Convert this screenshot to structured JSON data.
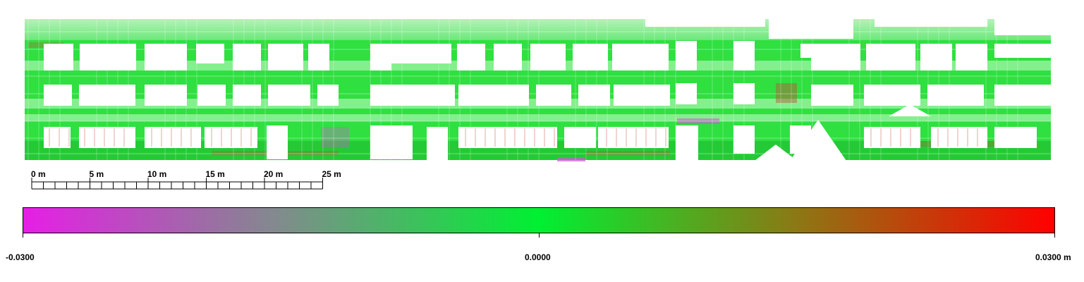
{
  "facade": {
    "colors": {
      "background": "#ffffff",
      "base_green": "#2fe040",
      "light_green": "#9af2a0",
      "dark_green": "#1fc030",
      "deviation_red": "#c0503a",
      "deviation_magenta": "#d05ad8"
    }
  },
  "scale_bar": {
    "unit": "m",
    "labels": [
      "0 m",
      "5 m",
      "10 m",
      "15 m",
      "20 m",
      "25 m"
    ],
    "major_values": [
      0,
      5,
      10,
      15,
      20,
      25
    ],
    "minor_step": 1
  },
  "colorbar": {
    "colors": {
      "min": "#e61ee6",
      "mid_low": "#808c8c",
      "center": "#00f032",
      "mid_high": "#8c7814",
      "max": "#ff0000"
    },
    "range": [
      -0.03,
      0.03
    ],
    "labels": {
      "min": "-0.0300",
      "center": "0.0000",
      "max": "0.0300 m"
    }
  }
}
